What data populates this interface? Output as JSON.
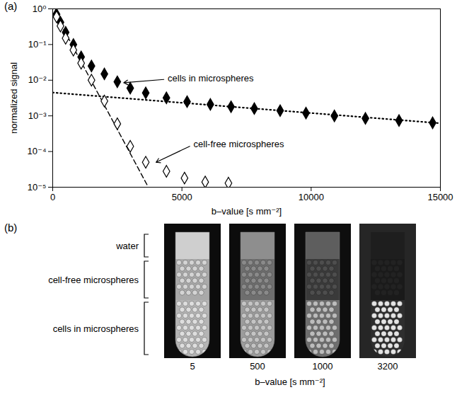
{
  "chart_data": {
    "type": "scatter",
    "panel_label": "(a)",
    "xlabel": "b–value [s mm⁻²]",
    "ylabel": "normalized signal",
    "log": "y",
    "grid": false,
    "xlim": [
      0,
      15000
    ],
    "ylim": [
      1e-05,
      1
    ],
    "xticks": [
      0,
      5000,
      10000,
      15000
    ],
    "yticks": [
      {
        "value": 1,
        "label": "10⁰"
      },
      {
        "value": 0.1,
        "label": "10⁻¹"
      },
      {
        "value": 0.01,
        "label": "10⁻²"
      },
      {
        "value": 0.001,
        "label": "10⁻³"
      },
      {
        "value": 0.0001,
        "label": "10⁻⁴"
      },
      {
        "value": 1e-05,
        "label": "10⁻⁵"
      }
    ],
    "series": [
      {
        "type": "line",
        "line_style": "dotted",
        "color": "#000000",
        "x": [
          0,
          15000
        ],
        "values": [
          0.0045,
          0.00062
        ]
      },
      {
        "type": "line",
        "line_style": "dashed",
        "color": "#000000",
        "x": [
          0,
          3700
        ],
        "values": [
          1,
          1e-05
        ]
      },
      {
        "type": "scatter",
        "marker": "filled_diamond",
        "color": "#000000",
        "x": [
          0,
          150,
          300,
          500,
          800,
          1100,
          1500,
          2000,
          2500,
          3000,
          3600,
          4400,
          5200,
          6100,
          6900,
          7800,
          8800,
          9800,
          10900,
          12100,
          13400,
          14700
        ],
        "values": [
          1,
          0.7,
          0.42,
          0.22,
          0.1,
          0.045,
          0.025,
          0.015,
          0.009,
          0.006,
          0.0044,
          0.0032,
          0.0025,
          0.0021,
          0.0018,
          0.0016,
          0.0014,
          0.0012,
          0.001,
          0.00085,
          0.00074,
          0.00064
        ]
      },
      {
        "type": "scatter",
        "marker": "open_diamond",
        "color": "#000000",
        "x": [
          0,
          150,
          300,
          500,
          800,
          1100,
          1500,
          2000,
          2500,
          3000,
          3600,
          4400,
          5100,
          5900,
          6800
        ],
        "values": [
          1,
          0.6,
          0.33,
          0.15,
          0.07,
          0.03,
          0.01,
          0.0026,
          0.0006,
          0.00014,
          5e-05,
          2.8e-05,
          1.8e-05,
          1.4e-05,
          1.3e-05
        ]
      }
    ],
    "annotations": [
      {
        "text": "cells in microspheres",
        "x": 4450,
        "y": 0.011,
        "arrow": [
          [
            4300,
            0.0105
          ],
          [
            2750,
            0.0085
          ]
        ]
      },
      {
        "text": "cell-free microspheres",
        "x": 5450,
        "y": 0.00016,
        "arrow": [
          [
            5300,
            0.00014
          ],
          [
            4000,
            5e-05
          ]
        ]
      }
    ]
  },
  "figure_b": {
    "panel_label": "(b)",
    "regions": [
      "water",
      "cell-free microspheres",
      "cells in microspheres"
    ],
    "b_values": [
      5,
      500,
      1000,
      3200
    ],
    "xlabel": "b–value [s mm⁻²]"
  }
}
